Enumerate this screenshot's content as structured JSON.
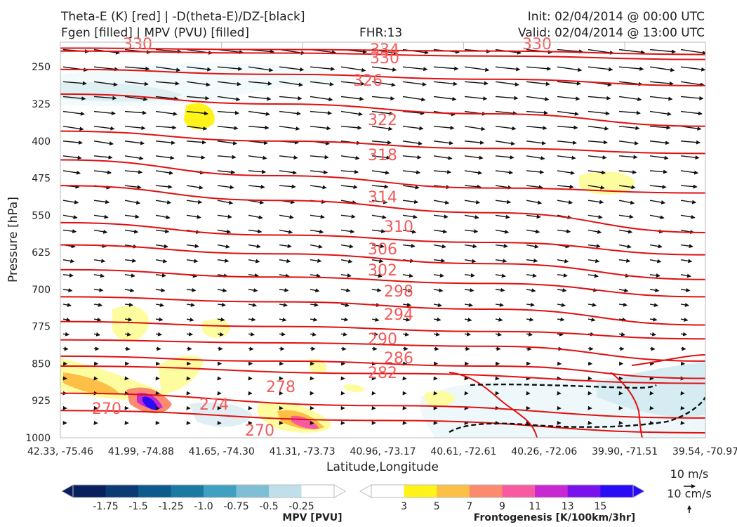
{
  "header": {
    "title_line1": "Theta-E (K) [red] | -D(theta-E)/DZ-[black]",
    "title_line2": "Fgen [filled] | MPV (PVU) [filled]",
    "fhr": "FHR:13",
    "init": "Init: 02/04/2014 @ 00:00 UTC",
    "valid": "Valid: 02/04/2014 @ 13:00 UTC"
  },
  "chart_data": {
    "type": "cross-section",
    "xlabel": "Latitude,Longitude",
    "ylabel": "Pressure [hPa]",
    "ylim": [
      1000,
      200
    ],
    "yticks": [
      250,
      325,
      400,
      475,
      550,
      625,
      700,
      775,
      850,
      925,
      1000
    ],
    "xticks": [
      "42.33, -75.46",
      "41.99, -74.88",
      "41.65, -74.30",
      "41.31, -73.73",
      "40.96, -73.17",
      "40.61, -72.61",
      "40.26, -72.06",
      "39.90, -71.51",
      "39.54, -70.97"
    ],
    "theta_e_contours": [
      {
        "value": 334,
        "p": [
          212,
          215,
          218,
          225
        ]
      },
      {
        "value": 330,
        "p": [
          218,
          222,
          228,
          235
        ]
      },
      {
        "value": 326,
        "p": [
          255,
          265,
          275,
          288
        ]
      },
      {
        "value": 322,
        "p": [
          305,
          325,
          345,
          370
        ]
      },
      {
        "value": 318,
        "p": [
          380,
          400,
          415,
          425
        ]
      },
      {
        "value": 314,
        "p": [
          438,
          470,
          495,
          505
        ]
      },
      {
        "value": 310,
        "p": [
          490,
          520,
          545,
          585
        ]
      },
      {
        "value": 306,
        "p": [
          565,
          590,
          605,
          630
        ]
      },
      {
        "value": 302,
        "p": [
          610,
          628,
          648,
          680
        ]
      },
      {
        "value": 298,
        "p": [
          660,
          675,
          688,
          715
        ]
      },
      {
        "value": 294,
        "p": [
          715,
          725,
          740,
          772
        ]
      },
      {
        "value": 290,
        "p": [
          765,
          775,
          785,
          800
        ]
      },
      {
        "value": 286,
        "p": [
          802,
          808,
          815,
          845
        ]
      },
      {
        "value": 282,
        "p": [
          835,
          845,
          855,
          880
        ]
      },
      {
        "value": 278,
        "p": [
          855,
          870,
          890
        ]
      },
      {
        "value": 274,
        "p": [
          910,
          935,
          960
        ]
      },
      {
        "value": 270,
        "p": [
          945,
          965,
          990
        ]
      }
    ],
    "contour_labels": [
      "334",
      "330",
      "326",
      "322",
      "318",
      "314",
      "310",
      "306",
      "302",
      "298",
      "294",
      "290",
      "286",
      "282",
      "278",
      "274",
      "270",
      "270",
      "330",
      "330"
    ],
    "mpv_colorbar": {
      "label": "MPV [PVU]",
      "ticks": [
        "-1.75",
        "-1.5",
        "-1.25",
        "-1.0",
        "-0.75",
        "-0.5",
        "-0.25"
      ],
      "colors": [
        "#08205e",
        "#0a3b75",
        "#0d5a8c",
        "#1a7aa3",
        "#3fa0c2",
        "#7fbfd6",
        "#bfe0ea",
        "#ffffff"
      ]
    },
    "fgen_colorbar": {
      "label": "Frontogenesis [K/100km/3hr]",
      "ticks": [
        "3",
        "5",
        "7",
        "9",
        "11",
        "13",
        "15"
      ],
      "colors": [
        "#ffffff",
        "#fff319",
        "#fdbf45",
        "#fb8a6e",
        "#f75aa0",
        "#c828d2",
        "#7a12ee",
        "#2a0bf5"
      ]
    },
    "wind_reference": {
      "u": "10 m/s",
      "w": "10 cm/s"
    }
  }
}
